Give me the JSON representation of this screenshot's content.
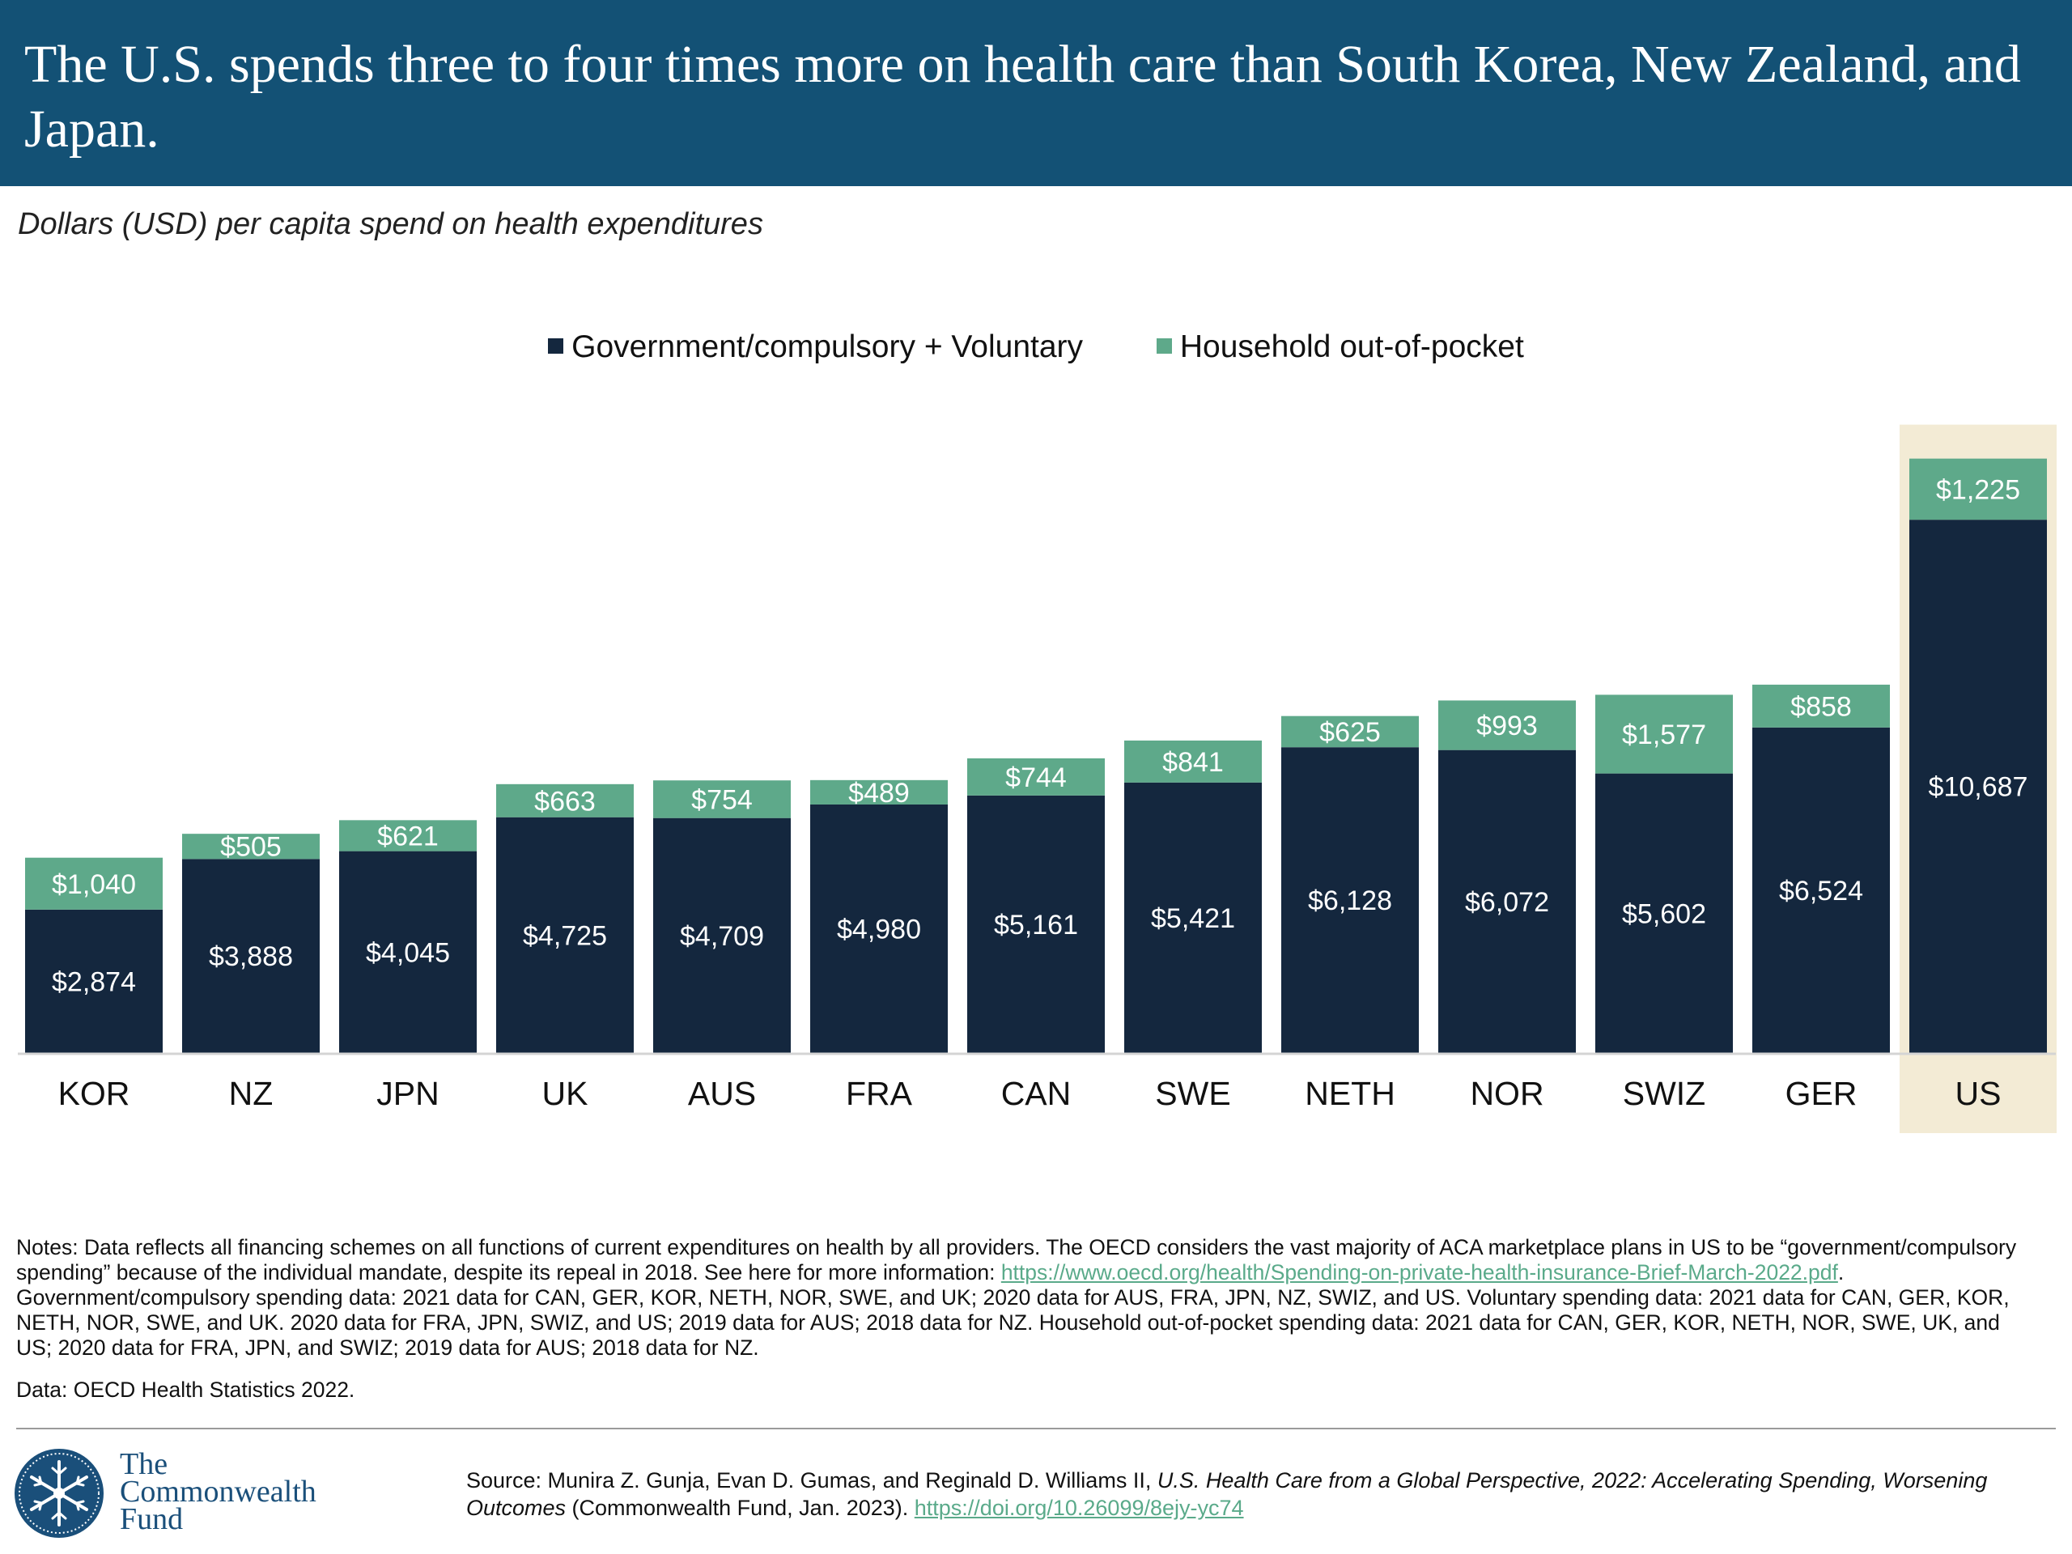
{
  "title": "The U.S. spends three to four times more on health care than South Korea, New Zealand, and Japan.",
  "subtitle": "Dollars (USD) per capita spend on health expenditures",
  "colors": {
    "header": "#135175",
    "government": "#14273e",
    "household": "#5ea98a",
    "highlight": "#f3ebd5"
  },
  "chart_data": {
    "type": "bar",
    "stacked": true,
    "categories": [
      "KOR",
      "NZ",
      "JPN",
      "UK",
      "AUS",
      "FRA",
      "CAN",
      "SWE",
      "NETH",
      "NOR",
      "SWIZ",
      "GER",
      "US"
    ],
    "series": [
      {
        "name": "Government/compulsory + Voluntary",
        "values": [
          2874,
          3888,
          4045,
          4725,
          4709,
          4980,
          5161,
          5421,
          6128,
          6072,
          5602,
          6524,
          10687
        ],
        "labels": [
          "$2,874",
          "$3,888",
          "$4,045",
          "$4,725",
          "$4,709",
          "$4,980",
          "$5,161",
          "$5,421",
          "$6,128",
          "$6,072",
          "$5,602",
          "$6,524",
          "$10,687"
        ]
      },
      {
        "name": "Household out-of-pocket",
        "values": [
          1040,
          505,
          621,
          663,
          754,
          489,
          744,
          841,
          625,
          993,
          1577,
          858,
          1225
        ],
        "labels": [
          "$1,040",
          "$505",
          "$621",
          "$663",
          "$754",
          "$489",
          "$744",
          "$841",
          "$625",
          "$993",
          "$1,577",
          "$858",
          "$1,225"
        ]
      }
    ],
    "highlight": "US",
    "legend_position": "top",
    "grid": false
  },
  "notes": {
    "text_1": "Notes: Data reflects all financing schemes on all functions of current expenditures on health by all providers. The OECD considers the vast majority of ACA marketplace plans in US to be “government/compulsory spending” because of the individual mandate, despite its repeal in 2018. See here for more information: ",
    "link": "https://www.oecd.org/health/Spending-on-private-health-insurance-Brief-March-2022.pdf",
    "text_2": ". Government/compulsory spending data: 2021 data for CAN, GER, KOR, NETH, NOR, SWE, and UK; 2020 data for AUS, FRA, JPN, NZ, SWIZ, and US. Voluntary spending data: 2021 data for CAN, GER, KOR, NETH, NOR, SWE, and UK. 2020 data for FRA, JPN, SWIZ, and US; 2019 data for AUS; 2018 data for NZ. Household out-of-pocket spending data: 2021 data for CAN, GER, KOR, NETH, NOR, SWE, UK, and US; 2020 data for FRA, JPN, and SWIZ; 2019 data for AUS; 2018 data for NZ."
  },
  "data_source": "Data: OECD Health Statistics 2022.",
  "logo": {
    "icon": "snowflake-emblem-icon",
    "line_1": "The",
    "line_2": "Commonwealth",
    "line_3": "Fund"
  },
  "source": {
    "prefix": "Source: Munira Z. Gunja, Evan D. Gumas, and Reginald D. Williams II, ",
    "italic": "U.S. Health Care from a Global Perspective, 2022: Accelerating Spending, Worsening Outcomes",
    "suffix": " (Commonwealth Fund, Jan. 2023). ",
    "link": "https://doi.org/10.26099/8ejy-yc74"
  }
}
